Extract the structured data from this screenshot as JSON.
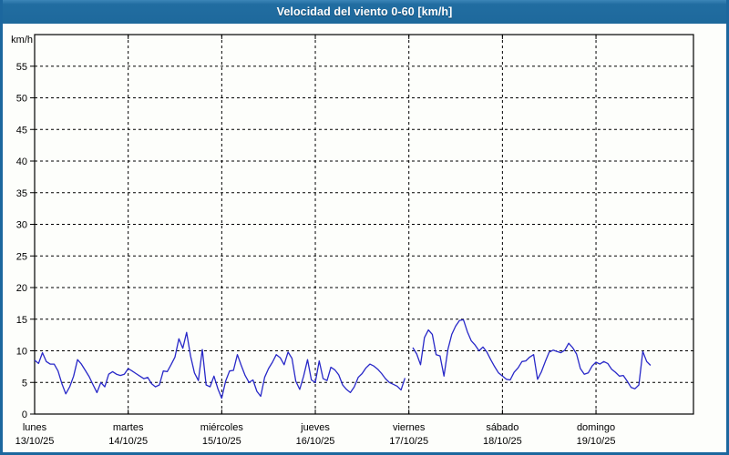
{
  "window": {
    "title": "Velocidad del viento 0-60 [km/h]"
  },
  "colors": {
    "frame": "#1c679e",
    "title_bar": "#216da1",
    "title_text": "#ffffff",
    "plot_background": "#fdfefb",
    "axis": "#000000",
    "grid": "#000000",
    "series_line": "#2828c8"
  },
  "chart_data": {
    "type": "line",
    "title": "Velocidad del viento 0-60 [km/h]",
    "xlabel": "",
    "ylabel": "km/h",
    "ylim": [
      0,
      60
    ],
    "xlim_hours": [
      0,
      169
    ],
    "grid": "dashed",
    "legend_position": "none",
    "yticks": [
      0,
      5,
      10,
      15,
      20,
      25,
      30,
      35,
      40,
      45,
      50,
      55
    ],
    "x_gridline_hours": [
      24,
      48,
      72,
      96,
      120,
      144
    ],
    "days": [
      {
        "name": "lunes",
        "date": "13/10/25",
        "hour": 0
      },
      {
        "name": "martes",
        "date": "14/10/25",
        "hour": 24
      },
      {
        "name": "miércoles",
        "date": "15/10/25",
        "hour": 48
      },
      {
        "name": "jueves",
        "date": "16/10/25",
        "hour": 72
      },
      {
        "name": "viernes",
        "date": "17/10/25",
        "hour": 96
      },
      {
        "name": "sábado",
        "date": "18/10/25",
        "hour": 120
      },
      {
        "name": "domingo",
        "date": "19/10/25",
        "hour": 144
      }
    ],
    "series": [
      {
        "name": "velocidad del viento",
        "unit": "km/h",
        "segments": [
          {
            "start_hour": 0,
            "step_hours": 1,
            "values": [
              8.5,
              8.0,
              9.7,
              8.3,
              7.9,
              7.9,
              6.8,
              4.8,
              3.2,
              4.3,
              6.0,
              8.6,
              7.9,
              6.9,
              5.9,
              4.6,
              3.4,
              5.0,
              4.3,
              6.3,
              6.7,
              6.3,
              6.1,
              6.3,
              7.2,
              6.8,
              6.4,
              6.0,
              5.6,
              5.8,
              4.8,
              4.3,
              4.6,
              6.8,
              6.7,
              7.8,
              9.0,
              11.9,
              10.4,
              12.9,
              9.2,
              6.5,
              5.3,
              10.2,
              4.6,
              4.3,
              6.0,
              4.0,
              2.5,
              5.2,
              6.8,
              6.9,
              9.4,
              7.7,
              6.1,
              5.0,
              5.4,
              3.6,
              2.8,
              5.8,
              7.2,
              8.2,
              9.4,
              8.9,
              7.8,
              9.8,
              8.8,
              5.2,
              3.9,
              6.0,
              8.6,
              5.4,
              5.0,
              8.4,
              5.6,
              5.3,
              7.4,
              7.0,
              6.2,
              4.6,
              3.9,
              3.4,
              4.3,
              5.8,
              6.4,
              7.3,
              7.9,
              7.6,
              7.1,
              6.4,
              5.6,
              5.0,
              4.7,
              4.4,
              3.8,
              5.7
            ]
          },
          {
            "start_hour": 97,
            "step_hours": 1,
            "values": [
              10.5,
              9.5,
              7.8,
              12.1,
              13.3,
              12.6,
              9.4,
              9.2,
              6.0,
              10.2,
              12.6,
              13.9,
              14.8,
              14.9,
              13.0,
              11.6,
              10.9,
              10.0,
              10.6,
              9.8,
              8.6,
              7.5,
              6.5,
              6.0,
              5.5,
              5.4,
              6.6,
              7.3,
              8.3,
              8.4,
              9.0,
              9.4,
              5.5,
              6.7,
              8.3,
              9.8,
              10.1,
              9.9,
              9.7,
              10.1,
              11.2,
              10.5,
              9.5,
              7.2,
              6.3,
              6.5,
              7.6,
              8.2,
              7.9,
              8.3,
              8.0,
              7.1,
              6.6,
              6.0,
              6.1,
              5.2,
              4.2,
              4.0,
              4.6,
              9.9,
              8.3,
              7.7
            ]
          }
        ]
      }
    ]
  }
}
